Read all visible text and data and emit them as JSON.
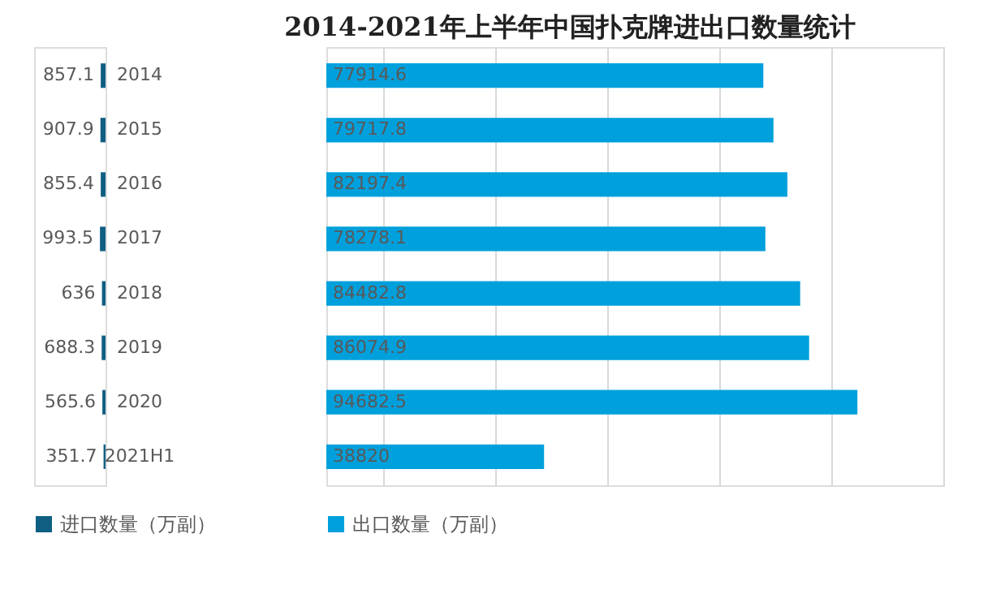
{
  "chart_data": [
    {
      "type": "bar",
      "orientation": "horizontal",
      "categories": [
        "2014",
        "2015",
        "2016",
        "2017",
        "2018",
        "2019",
        "2020",
        "2021H1"
      ],
      "series": [
        {
          "name": "进口数量（万副）",
          "color": "#0f5f83",
          "values": [
            857.1,
            907.9,
            855.4,
            993.5,
            636,
            688.3,
            565.6,
            351.7
          ]
        }
      ],
      "data_labels": true,
      "legend": "bottom",
      "tick_labels": "y"
    },
    {
      "type": "bar",
      "orientation": "horizontal",
      "title": "2014-2021年上半年中国扑克牌进出口数量统计",
      "categories": [
        null,
        null,
        null,
        null,
        null,
        null,
        null,
        null
      ],
      "series": [
        {
          "name": "出口数量（万副）",
          "color": "#00a0dc",
          "values": [
            77914.6,
            79717.8,
            82197.4,
            78278.1,
            84482.8,
            86074.9,
            94682.5,
            38820
          ]
        }
      ],
      "xlim": [
        0,
        110000
      ],
      "xticks": [
        {
          "value": 10000,
          "label": null
        },
        {
          "value": 30000,
          "label": null
        },
        {
          "value": 50000,
          "label": null
        },
        {
          "value": 70000,
          "label": null
        },
        {
          "value": 90000,
          "label": null
        },
        {
          "value": 110000,
          "label": null
        }
      ],
      "data_labels": true,
      "grid": "x",
      "legend": "bottom",
      "tick_labels": false
    }
  ]
}
